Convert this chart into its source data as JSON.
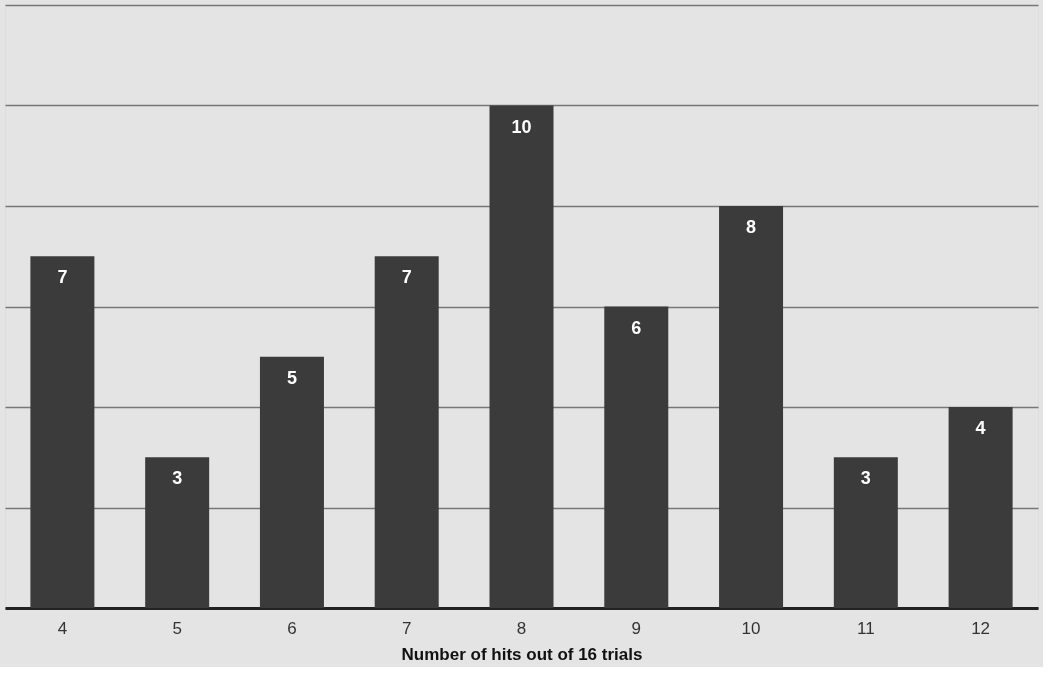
{
  "chart_data": {
    "type": "bar",
    "xlabel": "Number of hits out of 16 trials",
    "categories": [
      "4",
      "5",
      "6",
      "7",
      "8",
      "9",
      "10",
      "11",
      "12"
    ],
    "values": [
      7,
      3,
      5,
      7,
      10,
      6,
      8,
      3,
      4
    ],
    "color": "#3b3b3b",
    "data_labels": true,
    "ylim": [
      0,
      12
    ],
    "yticks": [
      {
        "value": 0,
        "label": null
      },
      {
        "value": 2,
        "label": null
      },
      {
        "value": 4,
        "label": null
      },
      {
        "value": 6,
        "label": null
      },
      {
        "value": 8,
        "label": null
      },
      {
        "value": 10,
        "label": null
      },
      {
        "value": 12,
        "label": null
      }
    ],
    "tick_labels": "x",
    "grid": "y"
  }
}
